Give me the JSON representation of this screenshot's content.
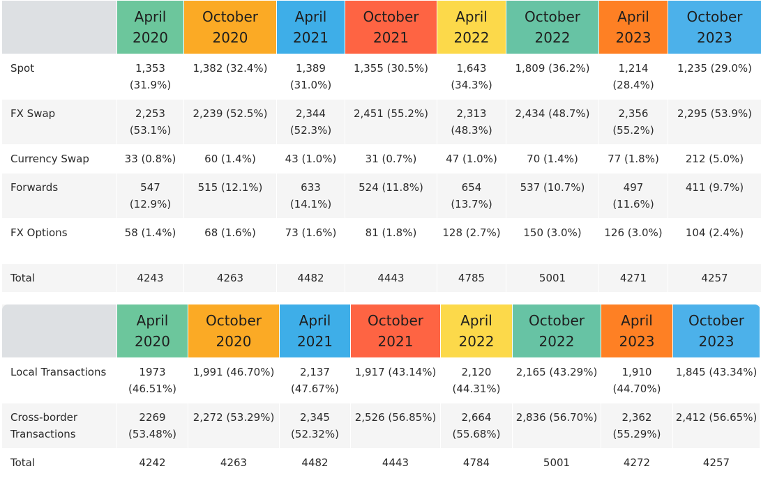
{
  "colors": {
    "green": "#6cc69c",
    "orange": "#fbaa25",
    "blue": "#3eaee8",
    "red": "#fe6443",
    "yellow": "#fcd94a",
    "teal": "#67c3a4",
    "deep_orange": "#fe8024",
    "light_blue": "#4cb1ea",
    "header_corner": "#dde0e3"
  },
  "periods": [
    {
      "line1": "April",
      "line2": "2020"
    },
    {
      "line1": "October",
      "line2": "2020"
    },
    {
      "line1": "April",
      "line2": "2021"
    },
    {
      "line1": "October",
      "line2": "2021"
    },
    {
      "line1": "April",
      "line2": "2022"
    },
    {
      "line1": "October",
      "line2": "2022"
    },
    {
      "line1": "April",
      "line2": "2023"
    },
    {
      "line1": "October",
      "line2": "2023"
    }
  ],
  "table1": {
    "rows": [
      {
        "label": "Spot",
        "cells": [
          "1,353 (31.9%)",
          "1,382 (32.4%)",
          "1,389 (31.0%)",
          "1,355 (30.5%)",
          "1,643 (34.3%)",
          "1,809 (36.2%)",
          "1,214 (28.4%)",
          "1,235 (29.0%)"
        ]
      },
      {
        "label": "FX Swap",
        "cells": [
          "2,253 (53.1%)",
          "2,239 (52.5%)",
          "2,344 (52.3%)",
          "2,451 (55.2%)",
          "2,313 (48.3%)",
          "2,434 (48.7%)",
          "2,356 (55.2%)",
          "2,295 (53.9%)"
        ]
      },
      {
        "label": "Currency Swap",
        "cells": [
          "33 (0.8%)",
          "60 (1.4%)",
          "43 (1.0%)",
          "31 (0.7%)",
          "47 (1.0%)",
          "70 (1.4%)",
          "77 (1.8%)",
          "212 (5.0%)"
        ]
      },
      {
        "label": "Forwards",
        "cells": [
          "547 (12.9%)",
          "515 (12.1%)",
          "633 (14.1%)",
          "524 (11.8%)",
          "654 (13.7%)",
          "537 (10.7%)",
          "497 (11.6%)",
          "411 (9.7%)"
        ]
      },
      {
        "label": "FX Options",
        "cells": [
          "58 (1.4%)",
          "68 (1.6%)",
          "73 (1.6%)",
          "81 (1.8%)",
          "128 (2.7%)",
          "150 (3.0%)",
          "126 (3.0%)",
          "104 (2.4%)"
        ]
      },
      {
        "label": "Total",
        "cells": [
          "4243",
          "4263",
          "4482",
          "4443",
          "4785",
          "5001",
          "4271",
          "4257"
        ]
      }
    ]
  },
  "table2": {
    "rows": [
      {
        "label": "Local Transactions",
        "cells": [
          "1973 (46.51%)",
          "1,991 (46.70%)",
          "2,137 (47.67%)",
          "1,917 (43.14%)",
          "2,120 (44.31%)",
          "2,165 (43.29%)",
          "1,910 (44.70%)",
          "1,845 (43.34%)"
        ]
      },
      {
        "label": "Cross-border Transactions",
        "cells": [
          "2269 (53.48%)",
          "2,272 (53.29%)",
          "2,345 (52.32%)",
          "2,526 (56.85%)",
          "2,664 (55.68%)",
          "2,836 (56.70%)",
          "2,362 (55.29%)",
          "2,412 (56.65%)"
        ]
      },
      {
        "label": "Total",
        "cells": [
          "4242",
          "4263",
          "4482",
          "4443",
          "4784",
          "5001",
          "4272",
          "4257"
        ]
      }
    ]
  }
}
